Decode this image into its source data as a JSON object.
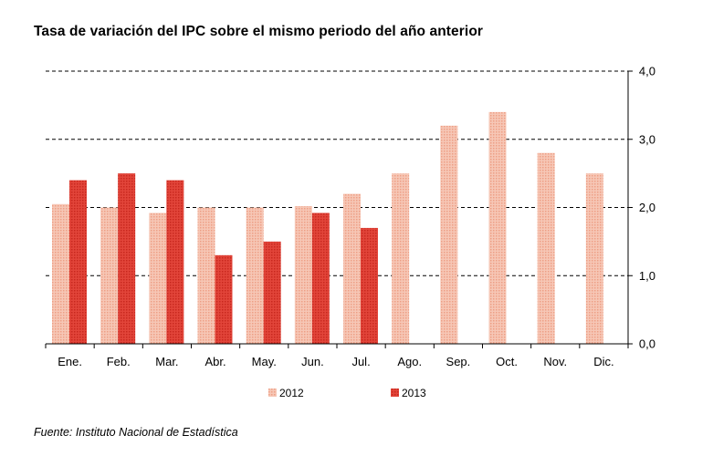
{
  "title": "Tasa de variación del IPC sobre el mismo periodo del año anterior",
  "source": "Fuente: Instituto Nacional de Estadística",
  "colors": {
    "s2012": "#f4b8a2",
    "s2013": "#dd3a2c",
    "grid": "#000000"
  },
  "chart_data": {
    "type": "bar",
    "title": "Tasa de variación del IPC sobre el mismo periodo del año anterior",
    "xlabel": "",
    "ylabel": "",
    "categories": [
      "Ene.",
      "Feb.",
      "Mar.",
      "Abr.",
      "May.",
      "Jun.",
      "Jul.",
      "Ago.",
      "Sep.",
      "Oct.",
      "Nov.",
      "Dic."
    ],
    "series": [
      {
        "name": "2012",
        "values": [
          2.05,
          2.0,
          1.92,
          2.0,
          2.0,
          2.02,
          2.2,
          2.5,
          3.2,
          3.4,
          2.8,
          2.5
        ]
      },
      {
        "name": "2013",
        "values": [
          2.4,
          2.5,
          2.4,
          1.3,
          1.5,
          1.92,
          1.7,
          null,
          null,
          null,
          null,
          null
        ]
      }
    ],
    "ylim": [
      0,
      4
    ],
    "yticks": [
      0,
      1,
      2,
      3,
      4
    ],
    "ytick_labels": [
      "0,0",
      "1,0",
      "2,0",
      "3,0",
      "4,0"
    ],
    "y_axis_side": "right",
    "grid": "dashed horizontal",
    "legend_position": "bottom"
  }
}
